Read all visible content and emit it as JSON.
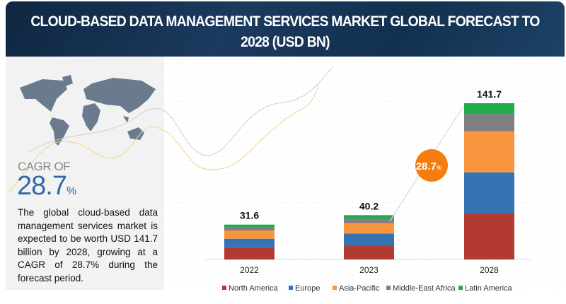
{
  "header": {
    "title": "CLOUD-BASED DATA MANAGEMENT SERVICES MARKET GLOBAL FORECAST TO 2028 (USD BN)"
  },
  "sidebar": {
    "cagr_label": "CAGR OF",
    "cagr_value": "28.7",
    "cagr_unit": "%",
    "description": "The global cloud-based data management services market is expected to be worth USD 141.7 billion by 2028, growing at a CAGR of 28.7% during the forecast period.",
    "map_icon": "world-map-icon"
  },
  "chart_data": {
    "type": "bar",
    "stacked": true,
    "title": "CLOUD-BASED DATA MANAGEMENT SERVICES MARKET GLOBAL FORECAST TO 2028 (USD BN)",
    "categories": [
      "2022",
      "2023",
      "2028"
    ],
    "totals": [
      "31.6",
      "40.2",
      "141.7"
    ],
    "series": [
      {
        "name": "North America",
        "color": "#b33a32",
        "values": [
          10.3,
          12.8,
          41.7
        ]
      },
      {
        "name": "Europe",
        "color": "#3673b5",
        "values": [
          8.5,
          10.7,
          37.3
        ]
      },
      {
        "name": "Asia-Pacific",
        "color": "#f7963f",
        "values": [
          7.5,
          9.4,
          37.2
        ]
      },
      {
        "name": "Middle-East Africa",
        "color": "#808080",
        "values": [
          3.2,
          4.3,
          15.8
        ]
      },
      {
        "name": "Latin America",
        "color": "#1fae4b",
        "values": [
          2.1,
          3.0,
          9.7
        ]
      }
    ],
    "ylim": [
      0,
      141.7
    ],
    "grid": false,
    "legend": "bottom",
    "annotation": {
      "text": "28.7",
      "unit": "%",
      "color": "#f57c10"
    }
  }
}
